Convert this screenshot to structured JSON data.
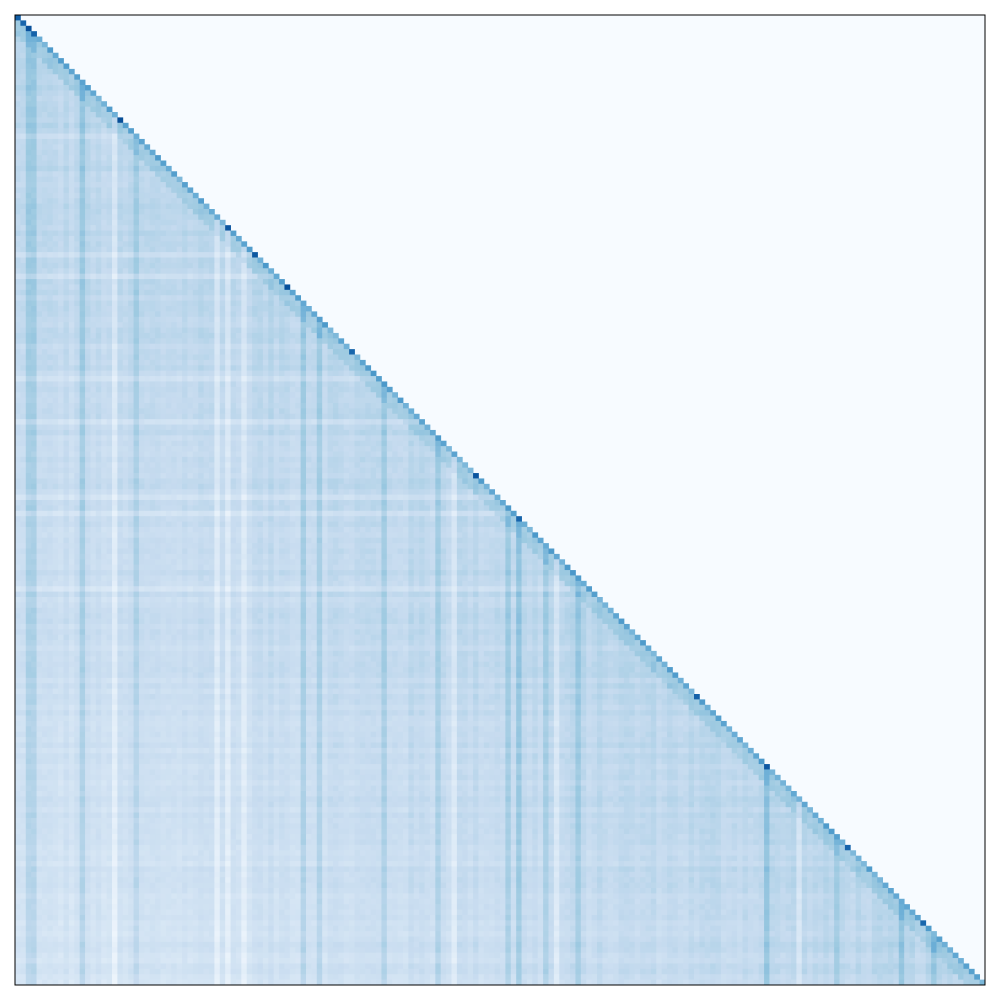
{
  "chart_data": {
    "type": "heatmap",
    "title": "",
    "xlabel": "",
    "ylabel": "",
    "axes_ticks_visible": false,
    "colorbar": false,
    "colormap": "Blues",
    "mask": "upper-triangle-above-diagonal",
    "matrix_size": 180,
    "value_range": [
      0,
      1
    ],
    "diagonal_value_typical": 0.45,
    "lower_triangle_value_range": [
      0.08,
      0.35
    ],
    "strong_diagonal_indices": [
      0,
      1,
      2,
      3,
      19,
      39,
      44,
      50,
      62,
      85,
      93,
      126,
      139,
      154,
      168
    ],
    "strong_column_indices": [
      2,
      3,
      12,
      22,
      37,
      53,
      56,
      68,
      78,
      91,
      93,
      98,
      104,
      139,
      152,
      164,
      170
    ],
    "light_column_indices": [
      18,
      37,
      39,
      42,
      81,
      100,
      145
    ],
    "light_row_indices": [
      22,
      44,
      48,
      67,
      75,
      89,
      92,
      106
    ],
    "colors": {
      "background": "#f7fbff",
      "frame": "#000000",
      "low": "#f7fbff",
      "high": "#08306b"
    }
  }
}
